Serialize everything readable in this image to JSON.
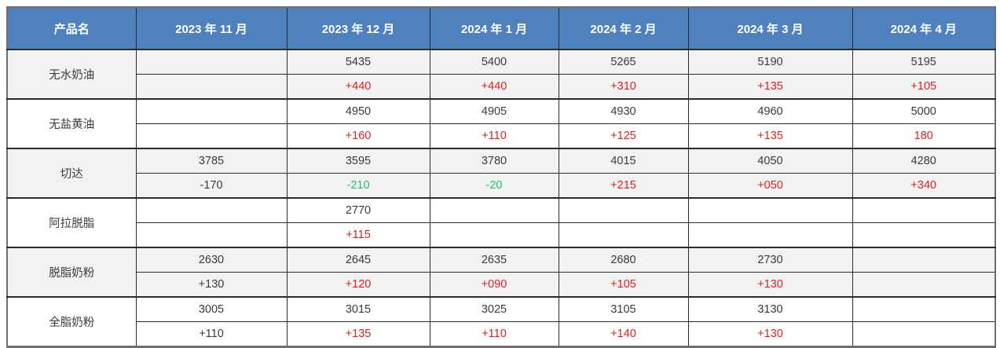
{
  "table": {
    "columns": [
      "产品名",
      "2023 年 11 月",
      "2023 年 12 月",
      "2024 年 1 月",
      "2024 年 2 月",
      "2024 年 3 月",
      "2024 年 4 月"
    ],
    "products": [
      {
        "name": "无水奶油",
        "shaded": true,
        "prices": [
          "",
          "5435",
          "5400",
          "5265",
          "5190",
          "5195"
        ],
        "changes": [
          {
            "text": "",
            "tone": null
          },
          {
            "text": "+440",
            "tone": "positive_change"
          },
          {
            "text": "+440",
            "tone": "positive_change"
          },
          {
            "text": "+310",
            "tone": "positive_change"
          },
          {
            "text": "+135",
            "tone": "positive_change"
          },
          {
            "text": "+105",
            "tone": "positive_change"
          }
        ]
      },
      {
        "name": "无盐黄油",
        "shaded": false,
        "prices": [
          "",
          "4950",
          "4905",
          "4930",
          "4960",
          "5000"
        ],
        "changes": [
          {
            "text": "",
            "tone": null
          },
          {
            "text": "+160",
            "tone": "positive_change"
          },
          {
            "text": "+110",
            "tone": "positive_change"
          },
          {
            "text": "+125",
            "tone": "positive_change"
          },
          {
            "text": "+135",
            "tone": "positive_change"
          },
          {
            "text": "180",
            "tone": "positive_change"
          }
        ]
      },
      {
        "name": "切达",
        "shaded": true,
        "prices": [
          "3785",
          "3595",
          "3780",
          "4015",
          "4050",
          "4280"
        ],
        "changes": [
          {
            "text": "-170",
            "tone": "neutral_change"
          },
          {
            "text": "-210",
            "tone": "negative_change"
          },
          {
            "text": "-20",
            "tone": "negative_change"
          },
          {
            "text": "+215",
            "tone": "positive_change"
          },
          {
            "text": "+050",
            "tone": "positive_change"
          },
          {
            "text": "+340",
            "tone": "positive_change"
          }
        ]
      },
      {
        "name": "阿拉脱脂",
        "shaded": false,
        "prices": [
          "",
          "2770",
          "",
          "",
          "",
          ""
        ],
        "changes": [
          {
            "text": "",
            "tone": null
          },
          {
            "text": "+115",
            "tone": "positive_change"
          },
          {
            "text": "",
            "tone": null
          },
          {
            "text": "",
            "tone": null
          },
          {
            "text": "",
            "tone": null
          },
          {
            "text": "",
            "tone": null
          }
        ]
      },
      {
        "name": "脱脂奶粉",
        "shaded": true,
        "prices": [
          "2630",
          "2645",
          "2635",
          "2680",
          "2730",
          ""
        ],
        "changes": [
          {
            "text": "+130",
            "tone": "neutral_change"
          },
          {
            "text": "+120",
            "tone": "positive_change"
          },
          {
            "text": "+090",
            "tone": "positive_change"
          },
          {
            "text": "+105",
            "tone": "positive_change"
          },
          {
            "text": "+130",
            "tone": "positive_change"
          },
          {
            "text": "",
            "tone": null
          }
        ]
      },
      {
        "name": "全脂奶粉",
        "shaded": false,
        "prices": [
          "3005",
          "3015",
          "3025",
          "3105",
          "3130",
          ""
        ],
        "changes": [
          {
            "text": "+110",
            "tone": "neutral_change"
          },
          {
            "text": "+135",
            "tone": "positive_change"
          },
          {
            "text": "+110",
            "tone": "positive_change"
          },
          {
            "text": "+140",
            "tone": "positive_change"
          },
          {
            "text": "+130",
            "tone": "positive_change"
          },
          {
            "text": "",
            "tone": null
          }
        ]
      }
    ]
  },
  "colors": {
    "header_bg": "#4E81BD",
    "header_text": "#FFFFFF",
    "band_shaded": "#F2F2F2",
    "band_plain": "#FFFFFF",
    "positive_change": "#E02020",
    "negative_change": "#27BE6B",
    "neutral_change": "#3A3A3A"
  }
}
